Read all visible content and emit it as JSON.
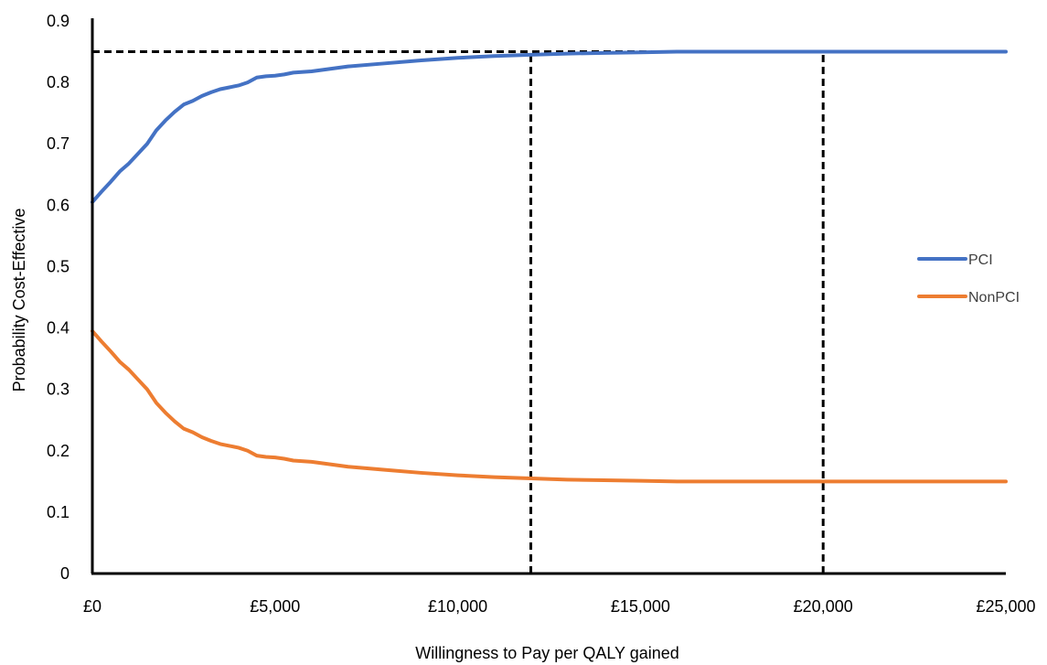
{
  "chart_data": {
    "type": "line",
    "title": "",
    "xlabel": "Willingness to Pay per QALY gained",
    "ylabel": "Probability Cost-Effective",
    "xlim": [
      0,
      25000
    ],
    "ylim": [
      0,
      0.9
    ],
    "x_ticks": [
      0,
      5000,
      10000,
      15000,
      20000,
      25000
    ],
    "x_tick_labels": [
      "£0",
      "£5,000",
      "£10,000",
      "£15,000",
      "£20,000",
      "£25,000"
    ],
    "y_ticks": [
      0,
      0.1,
      0.2,
      0.3,
      0.4,
      0.5,
      0.6,
      0.7,
      0.8,
      0.9
    ],
    "y_tick_labels": [
      "0",
      "0.1",
      "0.2",
      "0.3",
      "0.4",
      "0.5",
      "0.6",
      "0.7",
      "0.8",
      "0.9"
    ],
    "grid": false,
    "legend_position": "right",
    "series": [
      {
        "name": "PCI",
        "color": "#4472C4",
        "x": [
          0,
          250,
          500,
          750,
          1000,
          1250,
          1500,
          1750,
          2000,
          2250,
          2500,
          2750,
          3000,
          3250,
          3500,
          3750,
          4000,
          4250,
          4500,
          4750,
          5000,
          5250,
          5500,
          6000,
          7000,
          8000,
          9000,
          10000,
          11000,
          12000,
          13000,
          14000,
          15000,
          16000,
          17000,
          18000,
          19000,
          20000,
          21000,
          22000,
          23000,
          24000,
          25000
        ],
        "y": [
          0.605,
          0.622,
          0.638,
          0.655,
          0.668,
          0.684,
          0.7,
          0.722,
          0.738,
          0.752,
          0.764,
          0.77,
          0.778,
          0.784,
          0.789,
          0.792,
          0.795,
          0.8,
          0.808,
          0.81,
          0.811,
          0.813,
          0.816,
          0.818,
          0.826,
          0.831,
          0.836,
          0.84,
          0.843,
          0.845,
          0.847,
          0.848,
          0.849,
          0.85,
          0.85,
          0.85,
          0.85,
          0.85,
          0.85,
          0.85,
          0.85,
          0.85,
          0.85
        ]
      },
      {
        "name": "NonPCI",
        "color": "#ED7D31",
        "x": [
          0,
          250,
          500,
          750,
          1000,
          1250,
          1500,
          1750,
          2000,
          2250,
          2500,
          2750,
          3000,
          3250,
          3500,
          3750,
          4000,
          4250,
          4500,
          4750,
          5000,
          5250,
          5500,
          6000,
          7000,
          8000,
          9000,
          10000,
          11000,
          12000,
          13000,
          14000,
          15000,
          16000,
          17000,
          18000,
          19000,
          20000,
          21000,
          22000,
          23000,
          24000,
          25000
        ],
        "y": [
          0.395,
          0.378,
          0.362,
          0.345,
          0.332,
          0.316,
          0.3,
          0.278,
          0.262,
          0.248,
          0.236,
          0.23,
          0.222,
          0.216,
          0.211,
          0.208,
          0.205,
          0.2,
          0.192,
          0.19,
          0.189,
          0.187,
          0.184,
          0.182,
          0.174,
          0.169,
          0.164,
          0.16,
          0.157,
          0.155,
          0.153,
          0.152,
          0.151,
          0.15,
          0.15,
          0.15,
          0.15,
          0.15,
          0.15,
          0.15,
          0.15,
          0.15,
          0.15
        ]
      }
    ],
    "reference_lines": [
      {
        "type": "horizontal",
        "y": 0.85,
        "x_from": 0,
        "x_to": 20000,
        "style": "dashed",
        "color": "#000000"
      },
      {
        "type": "vertical",
        "x": 12000,
        "y_from": 0,
        "y_to": 0.85,
        "style": "dashed",
        "color": "#000000"
      },
      {
        "type": "vertical",
        "x": 20000,
        "y_from": 0,
        "y_to": 0.85,
        "style": "dashed",
        "color": "#000000"
      }
    ]
  }
}
